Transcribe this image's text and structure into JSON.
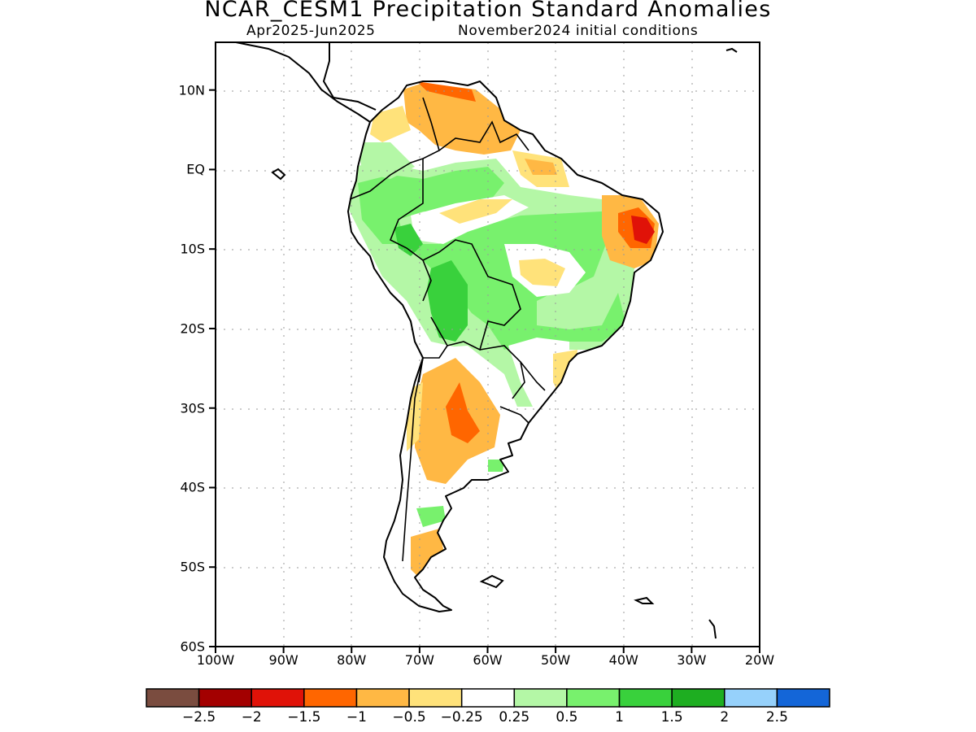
{
  "header": {
    "title": "NCAR_CESM1 Precipitation Standard Anomalies",
    "period": "Apr2025-Jun2025",
    "init": "November2024 initial conditions"
  },
  "map": {
    "lat_ticks": [
      {
        "value": 10,
        "label": "10N"
      },
      {
        "value": 0,
        "label": "EQ"
      },
      {
        "value": -10,
        "label": "10S"
      },
      {
        "value": -20,
        "label": "20S"
      },
      {
        "value": -30,
        "label": "30S"
      },
      {
        "value": -40,
        "label": "40S"
      },
      {
        "value": -50,
        "label": "50S"
      },
      {
        "value": -60,
        "label": "60S"
      }
    ],
    "lon_ticks": [
      {
        "value": -100,
        "label": "100W"
      },
      {
        "value": -90,
        "label": "90W"
      },
      {
        "value": -80,
        "label": "80W"
      },
      {
        "value": -70,
        "label": "70W"
      },
      {
        "value": -60,
        "label": "60W"
      },
      {
        "value": -50,
        "label": "50W"
      },
      {
        "value": -40,
        "label": "40W"
      },
      {
        "value": -30,
        "label": "30W"
      },
      {
        "value": -20,
        "label": "20W"
      }
    ],
    "extent": {
      "lon": [
        -100,
        -20
      ],
      "lat": [
        -60,
        16
      ]
    },
    "grid": true,
    "continent_outline": "South America"
  },
  "colorbar": {
    "colors": [
      "#7a4c3f",
      "#a30000",
      "#e01208",
      "#ff6600",
      "#ffb844",
      "#ffe27a",
      "#ffffff",
      "#b4f7a6",
      "#78f16d",
      "#39d13c",
      "#1eae21",
      "#96d1fb",
      "#1466d8"
    ],
    "labels": [
      "-2.5",
      "-2",
      "-1.5",
      "-1",
      "-0.5",
      "-0.25",
      "0.25",
      "0.5",
      "1",
      "1.5",
      "2",
      "2.5"
    ]
  }
}
